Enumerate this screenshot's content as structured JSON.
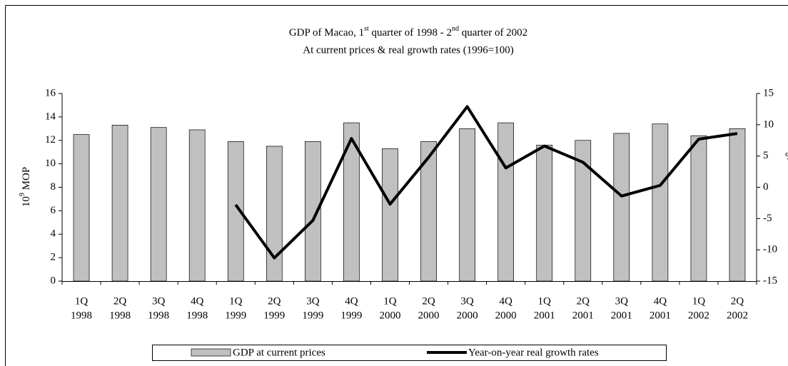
{
  "chart_data": {
    "type": "bar_line",
    "title": [
      "GDP of Macao, 1",
      "st",
      " quarter of 1998 - 2",
      "nd",
      " quarter of 2002"
    ],
    "subtitle": "At current prices & real growth rates (1996=100)",
    "ylabel": [
      "10",
      "9",
      " MOP"
    ],
    "y2label": "%",
    "categories": [
      [
        "1Q",
        "1998"
      ],
      [
        "2Q",
        "1998"
      ],
      [
        "3Q",
        "1998"
      ],
      [
        "4Q",
        "1998"
      ],
      [
        "1Q",
        "1999"
      ],
      [
        "2Q",
        "1999"
      ],
      [
        "3Q",
        "1999"
      ],
      [
        "4Q",
        "1999"
      ],
      [
        "1Q",
        "2000"
      ],
      [
        "2Q",
        "2000"
      ],
      [
        "3Q",
        "2000"
      ],
      [
        "4Q",
        "2000"
      ],
      [
        "1Q",
        "2001"
      ],
      [
        "2Q",
        "2001"
      ],
      [
        "3Q",
        "2001"
      ],
      [
        "4Q",
        "2001"
      ],
      [
        "1Q",
        "2002"
      ],
      [
        "2Q",
        "2002"
      ]
    ],
    "series": [
      {
        "name": "GDP at current prices",
        "type": "bar",
        "color": "#c0c0c0",
        "values": [
          12.5,
          13.3,
          13.1,
          12.9,
          11.9,
          11.5,
          11.9,
          13.5,
          11.3,
          11.9,
          13.0,
          13.5,
          11.6,
          12.0,
          12.6,
          13.4,
          12.4,
          13.0
        ]
      },
      {
        "name": "Year-on-year real growth rates",
        "type": "line",
        "axis": "y2",
        "color": "#000000",
        "values": [
          null,
          null,
          null,
          null,
          -2.8,
          -11.3,
          -5.3,
          7.8,
          -2.7,
          4.8,
          12.9,
          3.1,
          6.6,
          4.0,
          -1.4,
          0.3,
          7.7,
          8.6
        ]
      }
    ],
    "ylim": [
      0,
      16
    ],
    "yticks": [
      0,
      2,
      4,
      6,
      8,
      10,
      12,
      14,
      16
    ],
    "y2lim": [
      -15,
      15
    ],
    "y2ticks": [
      -15,
      -10,
      -5,
      0,
      5,
      10,
      15
    ],
    "legend": "bottom"
  }
}
